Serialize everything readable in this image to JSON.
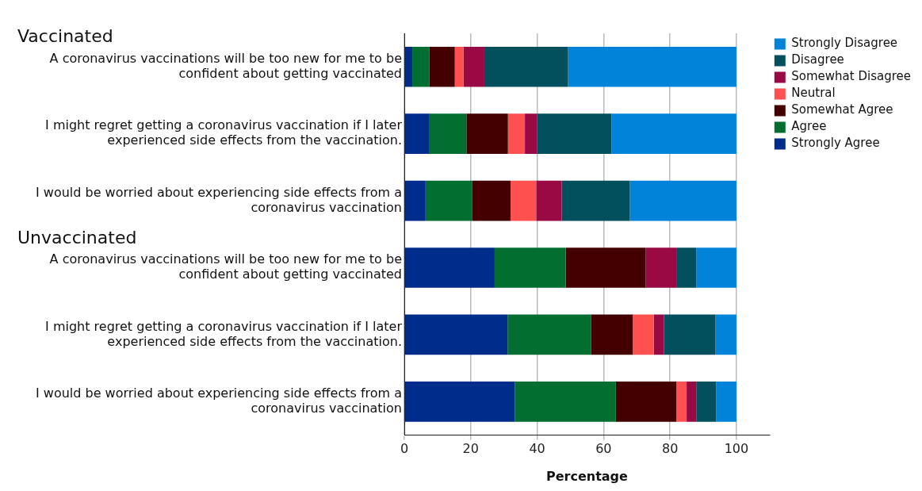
{
  "chart_data": {
    "type": "bar",
    "orientation": "horizontal",
    "stacked": true,
    "xlabel": "Percentage",
    "annotations": [
      "Vaccinated",
      "Unvaccinated"
    ],
    "categories": [
      "A coronavirus vaccinations will be too new for me to be confident about getting vaccinated",
      "I might regret getting a coronavirus vaccination if I later experienced side effects from the vaccination.",
      "I would be worried about experiencing side effects from a coronavirus vaccination",
      "A coronavirus vaccinations will be too new for me to be confident about getting vaccinated",
      "I might regret getting a coronavirus vaccination if I later experienced side effects from the vaccination.",
      "I would be worried about experiencing side effects from a coronavirus vaccination"
    ],
    "series": [
      {
        "name": "Strongly Agree",
        "color": "#002d8c",
        "values": [
          2.4,
          7.4,
          6.4,
          27.2,
          31.1,
          33.3
        ]
      },
      {
        "name": "Agree",
        "color": "#026e30",
        "values": [
          5.2,
          11.3,
          14.1,
          21.4,
          25.2,
          30.4
        ]
      },
      {
        "name": "Somewhat Agree",
        "color": "#440000",
        "values": [
          7.6,
          12.5,
          11.5,
          24.1,
          12.5,
          18.2
        ]
      },
      {
        "name": "Neutral",
        "color": "#ff5050",
        "values": [
          2.6,
          5.1,
          7.7,
          0,
          6.3,
          3.1
        ]
      },
      {
        "name": "Somewhat Disagree",
        "color": "#990944",
        "values": [
          6.3,
          3.7,
          7.7,
          9.2,
          3.1,
          2.9
        ]
      },
      {
        "name": "Disagree",
        "color": "#02505e",
        "values": [
          25.2,
          22.4,
          20.5,
          6.0,
          15.5,
          6.0
        ]
      },
      {
        "name": "Strongly Disagree",
        "color": "#0083d8",
        "values": [
          50.7,
          37.6,
          32.1,
          12.1,
          6.3,
          6.1
        ]
      }
    ],
    "xlim": [
      0,
      110
    ],
    "xticks": [
      0,
      20,
      40,
      60,
      80,
      100
    ],
    "grid": "x",
    "legend": "top right"
  }
}
